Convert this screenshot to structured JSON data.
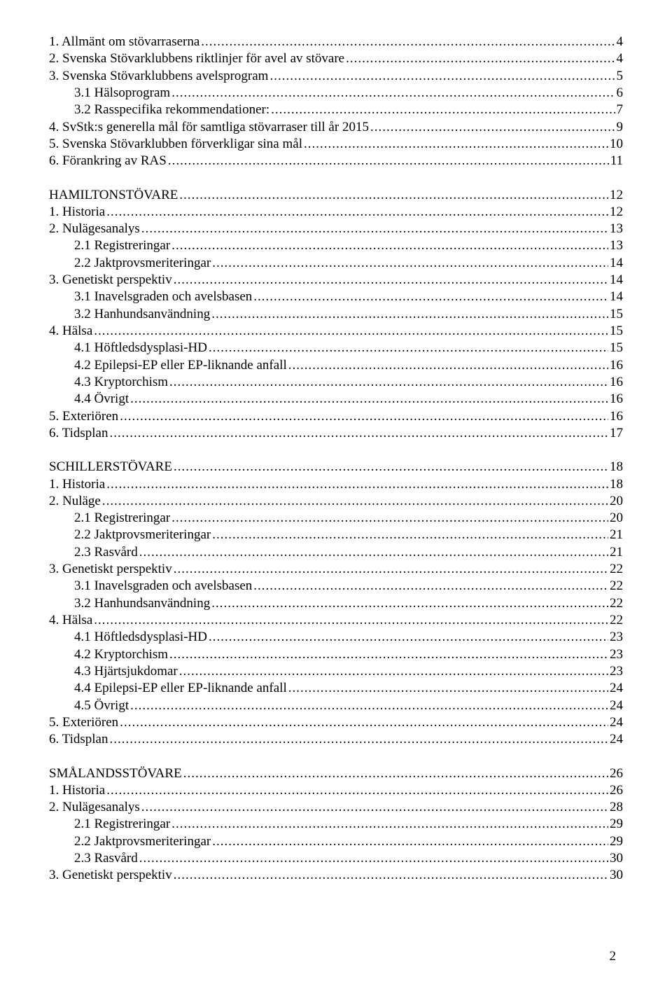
{
  "toc": [
    {
      "label": "1. Allmänt om stövarraserna",
      "page": "4",
      "indent": 0
    },
    {
      "label": "2. Svenska Stövarklubbens riktlinjer för avel av stövare",
      "page": "4",
      "indent": 0
    },
    {
      "label": "3. Svenska Stövarklubbens avelsprogram",
      "page": "5",
      "indent": 0
    },
    {
      "label": "3.1 Hälsoprogram",
      "page": "6",
      "indent": 1
    },
    {
      "label": "3.2 Rasspecifika rekommendationer:",
      "page": "7",
      "indent": 1
    },
    {
      "label": "4. SvStk:s generella mål för samtliga stövarraser till år 2015",
      "page": "9",
      "indent": 0
    },
    {
      "label": "5. Svenska Stövarklubben förverkligar sina mål",
      "page": "10",
      "indent": 0
    },
    {
      "label": "6. Förankring av RAS",
      "page": "11",
      "indent": 0
    },
    {
      "spacer": true
    },
    {
      "label": "HAMILTONSTÖVARE",
      "page": "12",
      "indent": 0
    },
    {
      "label": "1. Historia",
      "page": "12",
      "indent": 0
    },
    {
      "label": "2. Nulägesanalys",
      "page": "13",
      "indent": 0
    },
    {
      "label": "2.1 Registreringar",
      "page": "13",
      "indent": 1
    },
    {
      "label": "2.2 Jaktprovsmeriteringar",
      "page": "14",
      "indent": 1
    },
    {
      "label": "3. Genetiskt perspektiv",
      "page": "14",
      "indent": 0
    },
    {
      "label": "3.1 Inavelsgraden och avelsbasen",
      "page": "14",
      "indent": 1
    },
    {
      "label": "3.2 Hanhundsanvändning",
      "page": "15",
      "indent": 1
    },
    {
      "label": "4. Hälsa",
      "page": "15",
      "indent": 0
    },
    {
      "label": "4.1 Höftledsdysplasi-HD",
      "page": "15",
      "indent": 1
    },
    {
      "label": "4.2 Epilepsi-EP eller EP-liknande anfall",
      "page": "16",
      "indent": 1
    },
    {
      "label": "4.3 Kryptorchism",
      "page": "16",
      "indent": 1
    },
    {
      "label": "4.4 Övrigt",
      "page": "16",
      "indent": 1
    },
    {
      "label": "5. Exteriören",
      "page": "16",
      "indent": 0
    },
    {
      "label": "6. Tidsplan",
      "page": "17",
      "indent": 0
    },
    {
      "spacer": true
    },
    {
      "label": "SCHILLERSTÖVARE",
      "page": "18",
      "indent": 0
    },
    {
      "label": "1. Historia",
      "page": "18",
      "indent": 0
    },
    {
      "label": "2. Nuläge",
      "page": "20",
      "indent": 0
    },
    {
      "label": "2.1 Registreringar",
      "page": "20",
      "indent": 1
    },
    {
      "label": "2.2 Jaktprovsmeriteringar",
      "page": "21",
      "indent": 1
    },
    {
      "label": "2.3 Rasvård",
      "page": "21",
      "indent": 1
    },
    {
      "label": "3. Genetiskt perspektiv",
      "page": "22",
      "indent": 0
    },
    {
      "label": "3.1 Inavelsgraden och avelsbasen",
      "page": "22",
      "indent": 1
    },
    {
      "label": "3.2 Hanhundsanvändning",
      "page": "22",
      "indent": 1
    },
    {
      "label": "4. Hälsa",
      "page": "22",
      "indent": 0
    },
    {
      "label": "4.1 Höftledsdysplasi-HD",
      "page": "23",
      "indent": 1
    },
    {
      "label": "4.2 Kryptorchism",
      "page": "23",
      "indent": 1
    },
    {
      "label": "4.3 Hjärtsjukdomar",
      "page": "23",
      "indent": 1
    },
    {
      "label": "4.4 Epilepsi-EP eller EP-liknande anfall",
      "page": "24",
      "indent": 1
    },
    {
      "label": "4.5 Övrigt",
      "page": "24",
      "indent": 1
    },
    {
      "label": "5. Exteriören",
      "page": "24",
      "indent": 0
    },
    {
      "label": "6. Tidsplan",
      "page": "24",
      "indent": 0
    },
    {
      "spacer": true
    },
    {
      "label": "SMÅLANDSSTÖVARE",
      "page": "26",
      "indent": 0
    },
    {
      "label": "1. Historia",
      "page": "26",
      "indent": 0
    },
    {
      "label": "2. Nulägesanalys",
      "page": "28",
      "indent": 0
    },
    {
      "label": "2.1 Registreringar",
      "page": "29",
      "indent": 1
    },
    {
      "label": "2.2 Jaktprovsmeriteringar",
      "page": "29",
      "indent": 1
    },
    {
      "label": "2.3 Rasvård",
      "page": "30",
      "indent": 1
    },
    {
      "label": "3. Genetiskt perspektiv",
      "page": "30",
      "indent": 0
    }
  ],
  "page_number": "2"
}
